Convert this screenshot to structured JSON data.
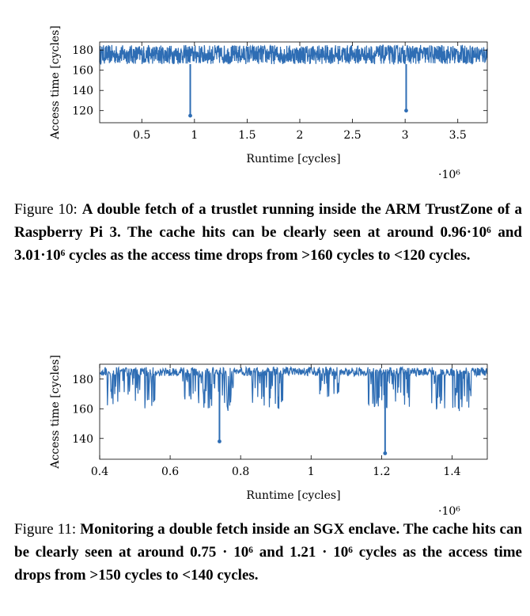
{
  "figures": [
    {
      "caption_label": "Figure 10:",
      "caption_text": "A double fetch of a trustlet running inside the ARM TrustZone of a Raspberry Pi 3. The cache hits can be clearly seen at around 0.96·10⁶ and 3.01·10⁶ cycles as the access time drops from >160 cycles to <120 cycles."
    },
    {
      "caption_label": "Figure 11:",
      "caption_text": "Monitoring a double fetch inside an SGX enclave. The cache hits can be clearly seen at around 0.75 · 10⁶ and 1.21 · 10⁶ cycles as the access time drops from >150 cycles to <140 cycles."
    }
  ],
  "chart_data": [
    {
      "type": "line",
      "xlabel": "Runtime [cycles]",
      "ylabel": "Access time [cycles]",
      "x_scale_label": "·10⁶",
      "xlim": [
        0.1,
        3.78
      ],
      "ylim": [
        108,
        188
      ],
      "xticks": [
        0.5,
        1,
        1.5,
        2,
        2.5,
        3,
        3.5
      ],
      "xtick_labels": [
        "0.5",
        "1",
        "1.5",
        "2",
        "2.5",
        "3",
        "3.5"
      ],
      "yticks": [
        120,
        140,
        160,
        180
      ],
      "ytick_labels": [
        "120",
        "140",
        "160",
        "180"
      ],
      "color": "#2e6db4",
      "baseline_range": [
        166,
        185
      ],
      "dips": [
        {
          "x": 0.96,
          "y": 115
        },
        {
          "x": 3.01,
          "y": 120
        }
      ]
    },
    {
      "type": "line",
      "xlabel": "Runtime [cycles]",
      "ylabel": "Access time [cycles]",
      "x_scale_label": "·10⁶",
      "xlim": [
        0.4,
        1.5
      ],
      "ylim": [
        126,
        190
      ],
      "xticks": [
        0.4,
        0.6,
        0.8,
        1,
        1.2,
        1.4
      ],
      "xtick_labels": [
        "0.4",
        "0.6",
        "0.8",
        "1",
        "1.2",
        "1.4"
      ],
      "yticks": [
        140,
        160,
        180
      ],
      "ytick_labels": [
        "140",
        "160",
        "180"
      ],
      "color": "#2e6db4",
      "baseline_range": [
        182,
        188
      ],
      "dips": [
        {
          "x": 0.74,
          "y": 138
        },
        {
          "x": 1.21,
          "y": 130
        }
      ]
    }
  ]
}
